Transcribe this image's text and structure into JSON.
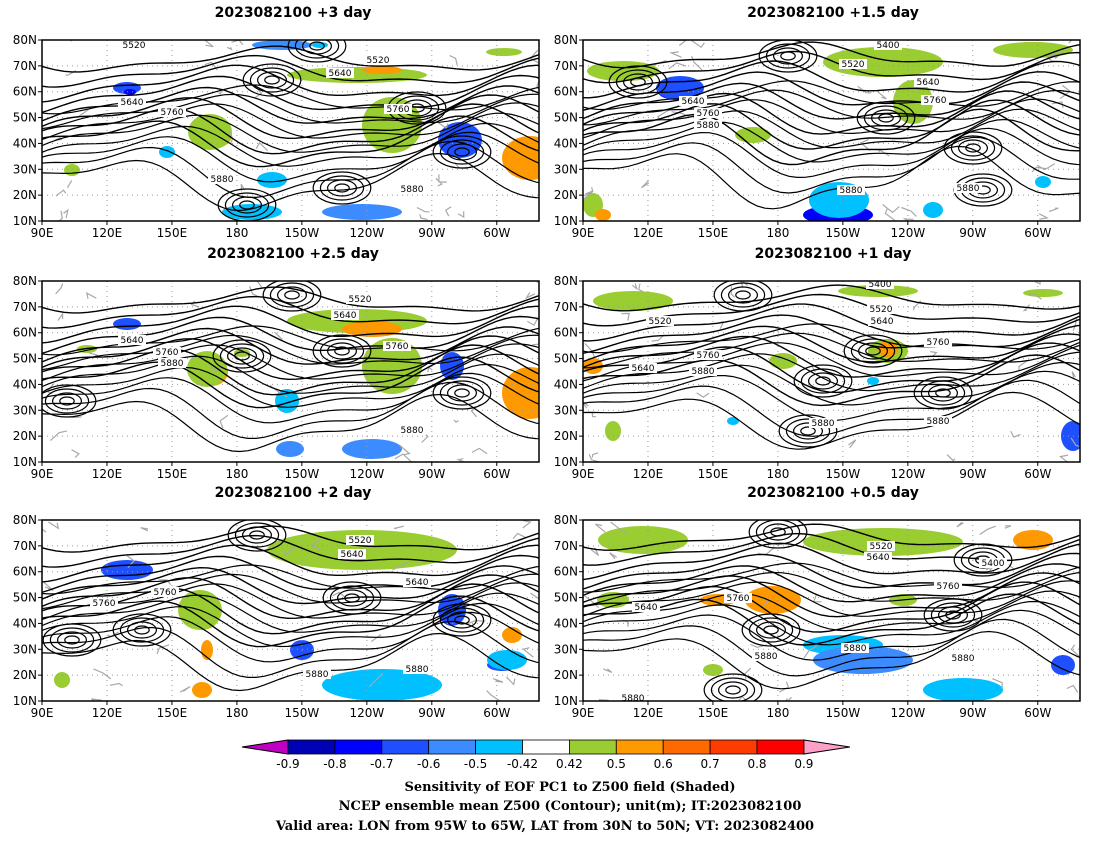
{
  "panels": [
    {
      "title": "2023082100 +3 day",
      "contour_labels": [
        "5520",
        "5520",
        "5640",
        "5640",
        "5760",
        "5760",
        "5880",
        "5880"
      ]
    },
    {
      "title": "2023082100 +1.5 day",
      "contour_labels": [
        "5400",
        "5520",
        "5640",
        "5640",
        "5760",
        "5760",
        "5880",
        "5880",
        "5880"
      ]
    },
    {
      "title": "2023082100 +2.5 day",
      "contour_labels": [
        "5520",
        "5640",
        "5640",
        "5760",
        "5760",
        "5880",
        "5880"
      ]
    },
    {
      "title": "2023082100 +1 day",
      "contour_labels": [
        "5400",
        "5520",
        "5520",
        "5640",
        "5640",
        "5760",
        "5760",
        "5880",
        "5880",
        "5880"
      ]
    },
    {
      "title": "2023082100 +2 day",
      "contour_labels": [
        "5520",
        "5640",
        "5640",
        "5760",
        "5760",
        "5880",
        "5880"
      ]
    },
    {
      "title": "2023082100 +0.5 day",
      "contour_labels": [
        "5520",
        "5640",
        "5400",
        "5760",
        "5640",
        "5760",
        "5880",
        "5880",
        "5880",
        "5880"
      ]
    }
  ],
  "lat_ticks": [
    "10N",
    "20N",
    "30N",
    "40N",
    "50N",
    "60N",
    "70N",
    "80N"
  ],
  "lon_ticks": [
    "90E",
    "120E",
    "150E",
    "180",
    "150W",
    "120W",
    "90W",
    "60W"
  ],
  "colorbar": {
    "labels": [
      "-0.9",
      "-0.8",
      "-0.7",
      "-0.6",
      "-0.5",
      "-0.42",
      "0.42",
      "0.5",
      "0.6",
      "0.7",
      "0.8",
      "0.9"
    ],
    "colors": [
      "#c000c0",
      "#0000b4",
      "#0000ff",
      "#1e50ff",
      "#3c8cff",
      "#00c0ff",
      "#ffffff",
      "#9acd32",
      "#ff9900",
      "#ff6a00",
      "#ff3c00",
      "#ff0000",
      "#ffa0c8"
    ]
  },
  "caption": [
    "Sensitivity of EOF PC1 to Z500 field (Shaded)",
    "NCEP ensemble mean Z500 (Contour); unit(m); IT:2023082100",
    "Valid area: LON from 95W to 65W, LAT from 30N to 50N; VT: 2023082400"
  ]
}
